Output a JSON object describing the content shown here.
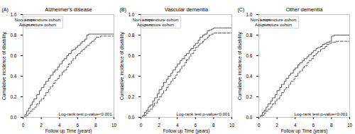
{
  "chart_data": [
    {
      "type": "step",
      "title": "Alzheimer's disease",
      "annotations": [
        "(A)",
        "Log-rank test p-value<0.001"
      ],
      "xlabel": "Follow up Time (years)",
      "ylabel": "Cumulative incidence of disability",
      "xlim": [
        0,
        10
      ],
      "ylim": [
        0.0,
        1.0
      ],
      "xticks": [
        0,
        2,
        4,
        6,
        8,
        10
      ],
      "yticks": [
        {
          "value": 0.0,
          "label": "0.0"
        },
        0.2,
        0.4,
        0.6,
        0.8,
        {
          "value": 1.0,
          "label": "1.0"
        }
      ],
      "legend": "upper left",
      "series": [
        {
          "name": "Non-acupuncture cohort",
          "color": "#555555",
          "line_style": "solid",
          "x": [
            0,
            0.2,
            0.4,
            0.6,
            0.8,
            1.0,
            1.2,
            1.5,
            1.8,
            2.0,
            2.3,
            2.5,
            2.8,
            3.0,
            3.3,
            3.5,
            3.8,
            4.0,
            4.3,
            4.5,
            4.8,
            5.0,
            5.3,
            5.5,
            5.8,
            6.0,
            6.3,
            6.5,
            6.8,
            7.0,
            7.2,
            7.5,
            7.8,
            8.0,
            8.5,
            9.0,
            9.5,
            10.0
          ],
          "values": [
            0.0,
            0.03,
            0.06,
            0.09,
            0.12,
            0.15,
            0.18,
            0.22,
            0.26,
            0.29,
            0.32,
            0.35,
            0.38,
            0.41,
            0.44,
            0.46,
            0.49,
            0.52,
            0.55,
            0.57,
            0.6,
            0.62,
            0.65,
            0.66,
            0.68,
            0.7,
            0.72,
            0.74,
            0.76,
            0.8,
            0.81,
            0.81,
            0.81,
            0.81,
            0.81,
            0.81,
            0.81,
            0.81
          ]
        },
        {
          "name": "Acupuncture cohort",
          "color": "#555555",
          "line_style": "dashed",
          "x": [
            0,
            0.2,
            0.4,
            0.6,
            0.8,
            1.0,
            1.3,
            1.5,
            1.8,
            2.0,
            2.3,
            2.5,
            2.8,
            3.0,
            3.3,
            3.5,
            3.8,
            4.0,
            4.3,
            4.5,
            4.8,
            5.0,
            5.3,
            5.5,
            5.8,
            6.0,
            6.3,
            6.5,
            6.8,
            7.0,
            7.3,
            7.5,
            7.8,
            8.0,
            8.5,
            9.0,
            9.5,
            10.0
          ],
          "values": [
            0.0,
            0.01,
            0.02,
            0.04,
            0.06,
            0.08,
            0.1,
            0.13,
            0.16,
            0.18,
            0.21,
            0.24,
            0.27,
            0.3,
            0.33,
            0.36,
            0.38,
            0.41,
            0.44,
            0.46,
            0.49,
            0.52,
            0.55,
            0.57,
            0.6,
            0.62,
            0.64,
            0.66,
            0.68,
            0.7,
            0.72,
            0.74,
            0.76,
            0.78,
            0.79,
            0.79,
            0.79,
            0.79
          ]
        }
      ]
    },
    {
      "type": "step",
      "title": "Vascular dementia",
      "annotations": [
        "(B)",
        "Log-rank test p-value<0.001"
      ],
      "xlabel": "Follow up Time (years)",
      "ylabel": "Cumulative incidence of disability",
      "xlim": [
        0,
        10
      ],
      "ylim": [
        0.0,
        1.0
      ],
      "xticks": [
        0,
        2,
        4,
        6,
        8,
        10
      ],
      "yticks": [
        {
          "value": 0.0,
          "label": "0.0"
        },
        0.2,
        0.4,
        0.6,
        0.8,
        {
          "value": 1.0,
          "label": "1.0"
        }
      ],
      "legend": "upper left",
      "series": [
        {
          "name": "Non-acupuncture cohort",
          "color": "#555555",
          "line_style": "solid",
          "x": [
            0,
            0.2,
            0.4,
            0.6,
            0.8,
            1.0,
            1.3,
            1.5,
            1.8,
            2.0,
            2.3,
            2.5,
            2.8,
            3.0,
            3.3,
            3.5,
            3.8,
            4.0,
            4.3,
            4.5,
            4.8,
            5.0,
            5.3,
            5.5,
            5.8,
            6.0,
            6.3,
            6.5,
            6.8,
            7.0,
            7.3,
            7.5,
            7.8,
            8.0,
            8.3,
            8.5,
            9.0,
            9.5,
            10.0
          ],
          "values": [
            0.0,
            0.02,
            0.05,
            0.07,
            0.1,
            0.12,
            0.16,
            0.19,
            0.23,
            0.27,
            0.3,
            0.34,
            0.37,
            0.4,
            0.43,
            0.46,
            0.49,
            0.52,
            0.55,
            0.57,
            0.6,
            0.62,
            0.65,
            0.67,
            0.7,
            0.72,
            0.75,
            0.78,
            0.8,
            0.81,
            0.84,
            0.85,
            0.86,
            0.87,
            0.87,
            0.87,
            0.87,
            0.87,
            0.87
          ]
        },
        {
          "name": "Acupuncture cohort",
          "color": "#555555",
          "line_style": "dashed",
          "x": [
            0,
            0.2,
            0.4,
            0.6,
            0.8,
            1.0,
            1.3,
            1.5,
            1.8,
            2.0,
            2.3,
            2.5,
            2.8,
            3.0,
            3.3,
            3.5,
            3.8,
            4.0,
            4.3,
            4.5,
            4.8,
            5.0,
            5.3,
            5.5,
            5.8,
            6.0,
            6.3,
            6.5,
            6.8,
            7.0,
            7.3,
            7.5,
            7.8,
            8.0,
            8.5,
            9.0,
            9.5,
            10.0
          ],
          "values": [
            0.0,
            0.01,
            0.02,
            0.04,
            0.06,
            0.08,
            0.11,
            0.14,
            0.17,
            0.2,
            0.23,
            0.26,
            0.29,
            0.32,
            0.35,
            0.38,
            0.41,
            0.44,
            0.47,
            0.5,
            0.53,
            0.56,
            0.59,
            0.62,
            0.65,
            0.68,
            0.7,
            0.72,
            0.74,
            0.76,
            0.78,
            0.8,
            0.81,
            0.82,
            0.82,
            0.82,
            0.82,
            0.82
          ]
        }
      ]
    },
    {
      "type": "step",
      "title": "Other dementia",
      "annotations": [
        "(C)",
        "Log-rank test p-value<0.001"
      ],
      "xlabel": "Follow up Time (years)",
      "ylabel": "Cumulative incidence of disability",
      "xlim": [
        0,
        10
      ],
      "ylim": [
        0.0,
        1.0
      ],
      "xticks": [
        0,
        2,
        4,
        6,
        8,
        10
      ],
      "yticks": [
        {
          "value": 0.0,
          "label": "0.0"
        },
        0.2,
        0.4,
        0.6,
        0.8,
        {
          "value": 1.0,
          "label": "1.0"
        }
      ],
      "legend": "upper left",
      "series": [
        {
          "name": "Non-acupuncture cohort",
          "color": "#555555",
          "line_style": "solid",
          "x": [
            0,
            0.2,
            0.4,
            0.6,
            0.8,
            1.0,
            1.3,
            1.5,
            1.8,
            2.0,
            2.3,
            2.5,
            2.8,
            3.0,
            3.3,
            3.5,
            3.8,
            4.0,
            4.3,
            4.5,
            4.8,
            5.0,
            5.3,
            5.5,
            5.8,
            6.0,
            6.3,
            6.5,
            6.8,
            7.0,
            7.3,
            7.5,
            7.8,
            8.0,
            8.3,
            8.5,
            9.0,
            9.5,
            10.0
          ],
          "values": [
            0.0,
            0.02,
            0.05,
            0.07,
            0.1,
            0.13,
            0.16,
            0.19,
            0.22,
            0.26,
            0.29,
            0.32,
            0.35,
            0.38,
            0.41,
            0.43,
            0.46,
            0.48,
            0.51,
            0.53,
            0.55,
            0.57,
            0.59,
            0.61,
            0.63,
            0.65,
            0.67,
            0.68,
            0.69,
            0.71,
            0.72,
            0.73,
            0.74,
            0.79,
            0.8,
            0.8,
            0.8,
            0.8,
            0.8
          ]
        },
        {
          "name": "Acupuncture cohort",
          "color": "#555555",
          "line_style": "dashed",
          "x": [
            0,
            0.2,
            0.4,
            0.6,
            0.8,
            1.0,
            1.3,
            1.5,
            1.8,
            2.0,
            2.3,
            2.5,
            2.8,
            3.0,
            3.3,
            3.5,
            3.8,
            4.0,
            4.3,
            4.5,
            4.8,
            5.0,
            5.3,
            5.5,
            5.8,
            6.0,
            6.3,
            6.5,
            6.8,
            7.0,
            7.3,
            7.5,
            7.8,
            8.0,
            8.5,
            9.0,
            9.5,
            10.0
          ],
          "values": [
            0.0,
            0.01,
            0.02,
            0.04,
            0.06,
            0.08,
            0.1,
            0.13,
            0.16,
            0.18,
            0.21,
            0.24,
            0.27,
            0.29,
            0.32,
            0.35,
            0.37,
            0.4,
            0.43,
            0.45,
            0.48,
            0.5,
            0.53,
            0.55,
            0.57,
            0.6,
            0.62,
            0.64,
            0.66,
            0.67,
            0.69,
            0.71,
            0.72,
            0.73,
            0.74,
            0.74,
            0.74,
            0.74
          ]
        }
      ]
    }
  ]
}
